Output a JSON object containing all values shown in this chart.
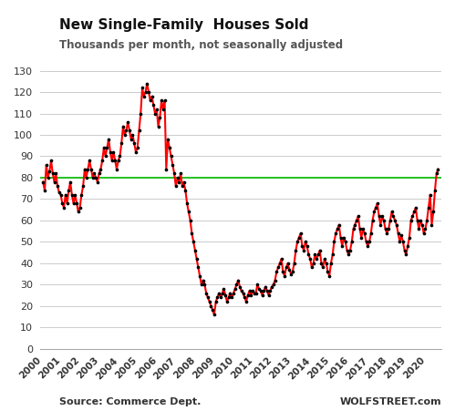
{
  "title": "New Single-Family  Houses Sold",
  "subtitle": "Thousands per month, not seasonally adjusted",
  "source_left": "Source: Commerce Dept.",
  "source_right": "WOLFSTREET.com",
  "ylim": [
    0,
    130
  ],
  "yticks": [
    0,
    10,
    20,
    30,
    40,
    50,
    60,
    70,
    80,
    90,
    100,
    110,
    120,
    130
  ],
  "green_line_y": 80,
  "line_color": "#FF0000",
  "dot_color": "#000000",
  "green_color": "#00BB00",
  "background_color": "#FFFFFF",
  "grid_color": "#CCCCCC",
  "monthly_data": [
    78,
    74,
    86,
    80,
    83,
    88,
    82,
    78,
    82,
    76,
    73,
    72,
    68,
    66,
    72,
    68,
    74,
    78,
    72,
    68,
    72,
    68,
    64,
    66,
    72,
    76,
    84,
    80,
    84,
    88,
    84,
    80,
    82,
    80,
    78,
    82,
    84,
    88,
    94,
    90,
    94,
    98,
    92,
    88,
    92,
    88,
    84,
    88,
    90,
    96,
    104,
    100,
    102,
    106,
    102,
    98,
    100,
    96,
    92,
    94,
    102,
    110,
    122,
    118,
    120,
    124,
    120,
    116,
    118,
    114,
    110,
    112,
    104,
    108,
    116,
    112,
    116,
    84,
    98,
    94,
    90,
    86,
    82,
    76,
    80,
    78,
    82,
    76,
    78,
    74,
    68,
    64,
    60,
    54,
    50,
    46,
    42,
    38,
    34,
    30,
    32,
    30,
    26,
    24,
    22,
    20,
    18,
    16,
    22,
    24,
    26,
    24,
    26,
    28,
    25,
    22,
    24,
    26,
    24,
    26,
    28,
    30,
    32,
    29,
    27,
    26,
    24,
    22,
    25,
    27,
    25,
    27,
    26,
    26,
    30,
    28,
    27,
    25,
    27,
    29,
    27,
    25,
    27,
    29,
    30,
    32,
    36,
    38,
    40,
    42,
    36,
    34,
    38,
    40,
    37,
    35,
    36,
    40,
    46,
    50,
    52,
    54,
    48,
    46,
    50,
    48,
    44,
    42,
    38,
    40,
    44,
    42,
    44,
    46,
    40,
    38,
    42,
    40,
    36,
    34,
    40,
    44,
    50,
    54,
    56,
    58,
    52,
    48,
    52,
    50,
    46,
    44,
    46,
    50,
    56,
    58,
    60,
    62,
    56,
    52,
    56,
    54,
    50,
    48,
    50,
    54,
    60,
    64,
    66,
    68,
    62,
    58,
    62,
    60,
    56,
    54,
    56,
    60,
    64,
    62,
    60,
    58,
    54,
    50,
    53,
    50,
    46,
    44,
    48,
    52,
    60,
    62,
    64,
    66,
    60,
    56,
    60,
    58,
    54,
    56,
    60,
    66,
    72,
    58,
    64,
    74,
    82,
    84
  ]
}
